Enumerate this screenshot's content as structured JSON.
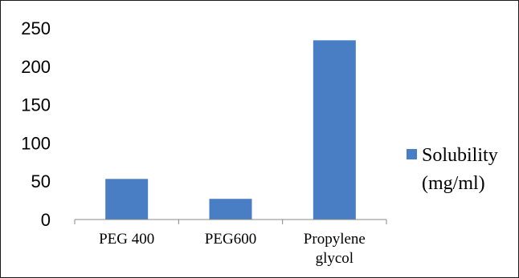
{
  "chart_data": {
    "type": "bar",
    "categories": [
      [
        "PEG 400"
      ],
      [
        "PEG600"
      ],
      [
        "Propylene",
        "glycol"
      ]
    ],
    "series": [
      {
        "name": [
          "Solubility",
          "(mg/ml)"
        ],
        "values": [
          53,
          27,
          234
        ],
        "color": "#4a7ec4"
      }
    ],
    "ylim": [
      0,
      250
    ],
    "yticks": [
      "0",
      "50",
      "100",
      "150",
      "200",
      "250"
    ],
    "grid": false,
    "legend_position": "right"
  }
}
